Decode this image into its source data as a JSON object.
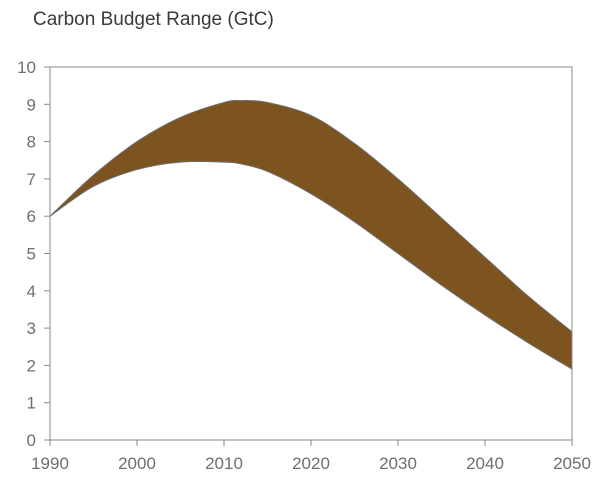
{
  "chart_data": {
    "type": "area",
    "title": "Carbon Budget Range (GtC)",
    "xlabel": "",
    "ylabel": "",
    "xlim": [
      1990,
      2050
    ],
    "ylim": [
      0,
      10
    ],
    "x_ticks": [
      1990,
      2000,
      2010,
      2020,
      2030,
      2040,
      2050
    ],
    "y_ticks": [
      0,
      1,
      2,
      3,
      4,
      5,
      6,
      7,
      8,
      9,
      10
    ],
    "grid": false,
    "legend": "none",
    "band_color": "#7d5420",
    "band_edge_color": "#6e6e6e",
    "x": [
      1990,
      1995,
      2000,
      2005,
      2010,
      2012,
      2015,
      2020,
      2025,
      2030,
      2035,
      2040,
      2045,
      2050
    ],
    "series": [
      {
        "values": [
          6.0,
          7.1,
          8.0,
          8.65,
          9.05,
          9.1,
          9.05,
          8.7,
          7.95,
          7.0,
          5.95,
          4.9,
          3.85,
          2.9
        ]
      },
      {
        "values": [
          6.0,
          6.8,
          7.25,
          7.45,
          7.45,
          7.4,
          7.2,
          6.6,
          5.85,
          5.0,
          4.15,
          3.35,
          2.6,
          1.9
        ]
      }
    ]
  }
}
